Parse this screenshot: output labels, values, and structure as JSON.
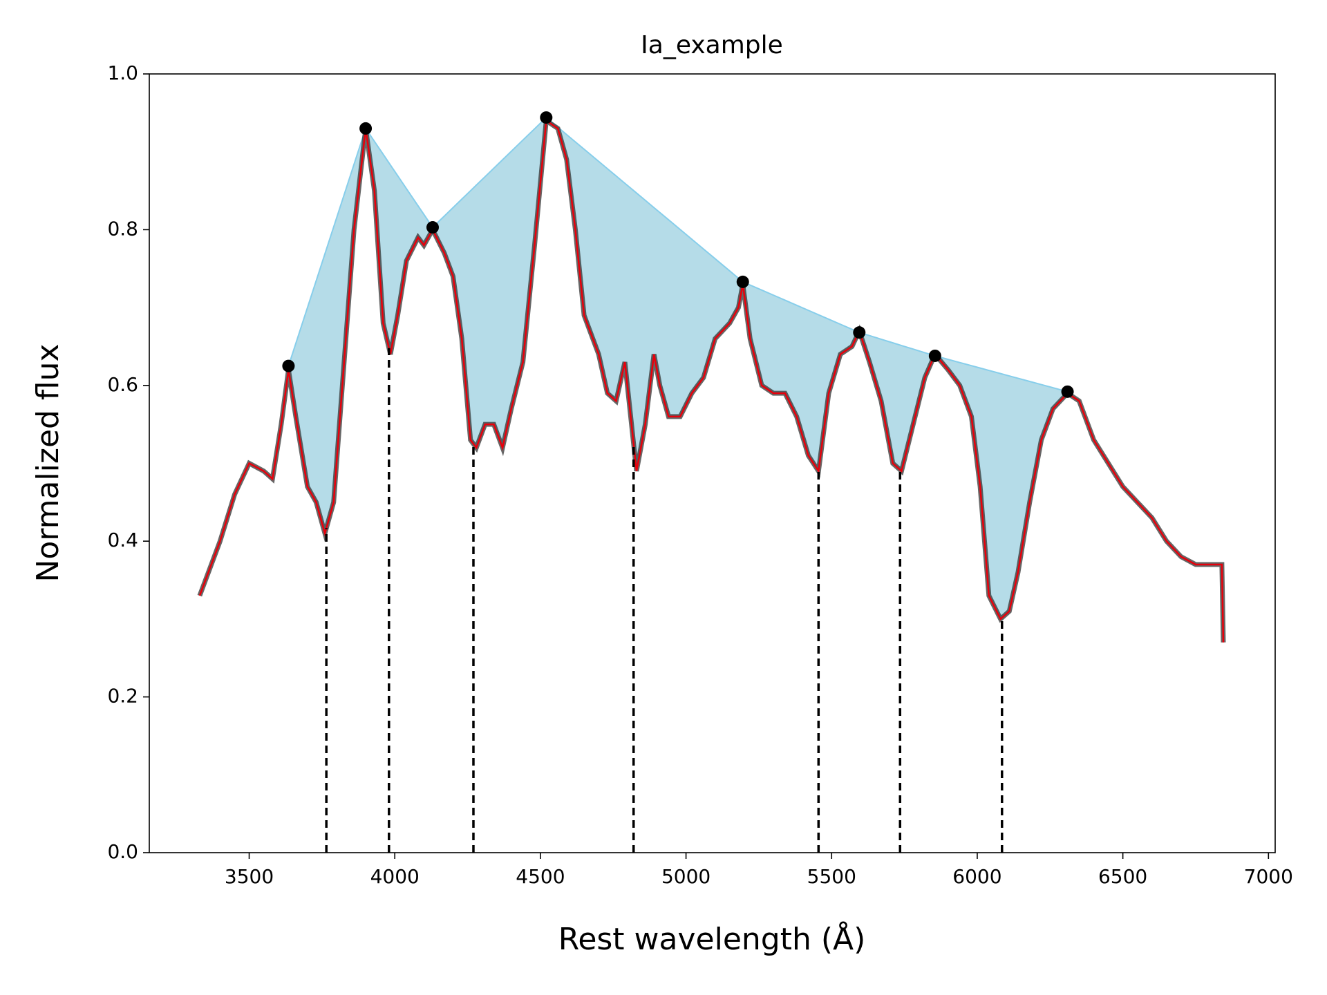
{
  "chart_data": {
    "type": "line",
    "title": "Ia_example",
    "xlabel": "Rest wavelength (Å)",
    "ylabel": "Normalized flux",
    "x": [
      3330,
      3400,
      3450,
      3500,
      3550,
      3580,
      3610,
      3635,
      3660,
      3700,
      3730,
      3760,
      3790,
      3820,
      3860,
      3900,
      3930,
      3960,
      3985,
      4010,
      4040,
      4080,
      4100,
      4130,
      4170,
      4200,
      4230,
      4260,
      4280,
      4310,
      4340,
      4370,
      4400,
      4440,
      4480,
      4520,
      4560,
      4590,
      4620,
      4650,
      4700,
      4730,
      4760,
      4790,
      4810,
      4830,
      4860,
      4890,
      4910,
      4940,
      4980,
      5020,
      5060,
      5100,
      5150,
      5180,
      5195,
      5220,
      5260,
      5300,
      5340,
      5380,
      5420,
      5455,
      5490,
      5530,
      5570,
      5595,
      5630,
      5670,
      5710,
      5740,
      5780,
      5820,
      5855,
      5900,
      5940,
      5980,
      6010,
      6040,
      6080,
      6110,
      6140,
      6180,
      6220,
      6260,
      6310,
      6350,
      6400,
      6450,
      6500,
      6550,
      6600,
      6650,
      6700,
      6750,
      6800,
      6840,
      6845
    ],
    "series": [
      {
        "color": "#e8000b",
        "values": [
          0.33,
          0.4,
          0.46,
          0.5,
          0.49,
          0.48,
          0.55,
          0.62,
          0.56,
          0.47,
          0.45,
          0.41,
          0.45,
          0.6,
          0.8,
          0.93,
          0.85,
          0.68,
          0.64,
          0.69,
          0.76,
          0.79,
          0.78,
          0.8,
          0.77,
          0.74,
          0.66,
          0.53,
          0.52,
          0.55,
          0.55,
          0.52,
          0.57,
          0.63,
          0.78,
          0.94,
          0.93,
          0.89,
          0.8,
          0.69,
          0.64,
          0.59,
          0.58,
          0.63,
          0.56,
          0.49,
          0.55,
          0.64,
          0.6,
          0.56,
          0.56,
          0.59,
          0.61,
          0.66,
          0.68,
          0.7,
          0.73,
          0.66,
          0.6,
          0.59,
          0.59,
          0.56,
          0.51,
          0.49,
          0.59,
          0.64,
          0.65,
          0.67,
          0.63,
          0.58,
          0.5,
          0.49,
          0.55,
          0.61,
          0.64,
          0.62,
          0.6,
          0.56,
          0.47,
          0.33,
          0.3,
          0.31,
          0.36,
          0.45,
          0.53,
          0.57,
          0.59,
          0.58,
          0.53,
          0.5,
          0.47,
          0.45,
          0.43,
          0.4,
          0.38,
          0.37,
          0.37,
          0.37,
          0.27
        ]
      }
    ],
    "peaks": {
      "color": "#000000",
      "x": [
        3635,
        3900,
        4130,
        4520,
        5195,
        5595,
        5855,
        6310
      ],
      "values": [
        0.625,
        0.93,
        0.803,
        0.944,
        0.733,
        0.668,
        0.638,
        0.592
      ]
    },
    "minima": {
      "color": "#000000",
      "x": [
        3765,
        3980,
        4270,
        4820,
        5455,
        5735,
        6085
      ]
    },
    "fill_color": "#add8e6",
    "fill_edge_color": "#87ceeb",
    "xlim": [
      3157,
      7023
    ],
    "ylim": [
      0,
      1
    ],
    "xticks": [
      3500,
      4000,
      4500,
      5000,
      5500,
      6000,
      6500,
      7000
    ],
    "yticks": [
      {
        "value": 0,
        "label": "0.0"
      },
      0.2,
      0.4,
      0.6,
      0.8,
      {
        "value": 1,
        "label": "1.0"
      }
    ]
  }
}
